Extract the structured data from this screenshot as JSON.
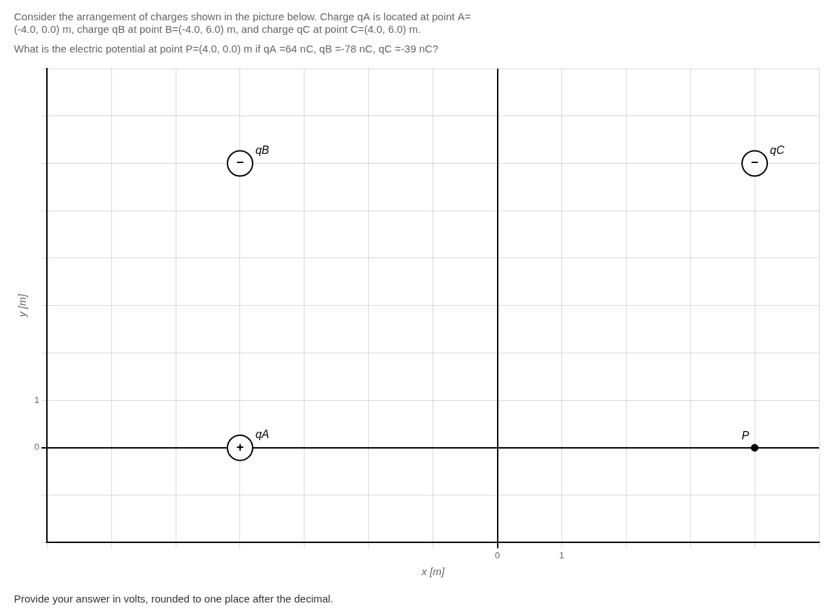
{
  "chart_data": {
    "type": "scatter",
    "title": [
      "Consider the arrangement of charges shown in the picture below. Charge qA is located at point A=",
      "(-4.0, 0.0) m, charge qB at point B=(-4.0, 6.0) m, and charge qC at point C=(4.0, 6.0) m."
    ],
    "subtitle": "What is the electric potential at point P=(4.0, 0.0) m if qA =64 nC, qB =-78 nC, qC =-39 nC?",
    "annotations": [
      "Provide your answer in volts, rounded to one place after the decimal."
    ],
    "x_label": "x [m]",
    "y_label": "y [m]",
    "series": [
      {
        "name": "qA",
        "x": [
          -4.0
        ],
        "values": [
          0.0
        ],
        "marker": "circle",
        "value_labels": [
          "+"
        ]
      },
      {
        "name": "qB",
        "x": [
          -4.0
        ],
        "values": [
          6.0
        ],
        "marker": "circle",
        "value_labels": [
          "−"
        ]
      },
      {
        "name": "qC",
        "x": [
          4.0
        ],
        "values": [
          6.0
        ],
        "marker": "circle",
        "value_labels": [
          "−"
        ]
      },
      {
        "name": "P",
        "x": [
          4.0
        ],
        "values": [
          0.0
        ],
        "marker": "dot"
      }
    ],
    "color": "#000000",
    "xlim": [
      -7,
      5
    ],
    "ylim": [
      -2,
      8
    ],
    "xticks": [
      0,
      1
    ],
    "yticks": [
      0,
      1
    ],
    "grid": true
  }
}
